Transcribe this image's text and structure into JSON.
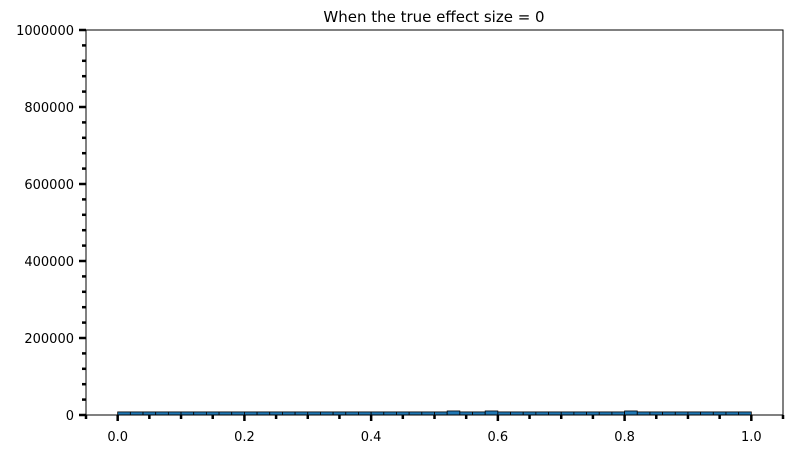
{
  "chart_data": {
    "type": "bar",
    "title": "When the true effect size = 0",
    "xlabel": "",
    "ylabel": "",
    "xlim": [
      -0.05,
      1.05
    ],
    "ylim": [
      0,
      1000000
    ],
    "x_ticks": [
      "0.0",
      "0.2",
      "0.4",
      "0.6",
      "0.8",
      "1.0"
    ],
    "y_ticks": [
      "0",
      "200000",
      "400000",
      "600000",
      "800000",
      "1000000"
    ],
    "bin_width": 0.02,
    "bin_starts": [
      0.0,
      0.02,
      0.04,
      0.06,
      0.08,
      0.1,
      0.12,
      0.14,
      0.16,
      0.18,
      0.2,
      0.22,
      0.24,
      0.26,
      0.28,
      0.3,
      0.32,
      0.34,
      0.36,
      0.38,
      0.4,
      0.42,
      0.44,
      0.46,
      0.48,
      0.5,
      0.52,
      0.54,
      0.56,
      0.58,
      0.6,
      0.62,
      0.64,
      0.66,
      0.68,
      0.7,
      0.72,
      0.74,
      0.76,
      0.78,
      0.8,
      0.82,
      0.84,
      0.86,
      0.88,
      0.9,
      0.92,
      0.94,
      0.96,
      0.98
    ],
    "values": [
      8000,
      8000,
      8000,
      8000,
      8000,
      8000,
      8000,
      8000,
      8000,
      8000,
      8000,
      8000,
      8000,
      8000,
      8000,
      8000,
      8000,
      8000,
      8000,
      8000,
      8000,
      8000,
      8000,
      8000,
      8000,
      8000,
      10500,
      8000,
      8000,
      10500,
      8000,
      8000,
      8000,
      8000,
      8000,
      8000,
      8000,
      8000,
      8000,
      8000,
      10500,
      8000,
      8000,
      8000,
      8000,
      8000,
      8000,
      8000,
      8000,
      8000
    ],
    "bar_color": "#1f77b4",
    "edge_color": "#000000",
    "grid": false
  }
}
